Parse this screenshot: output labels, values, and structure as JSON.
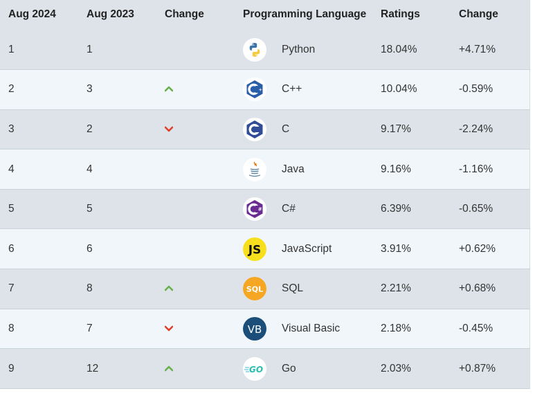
{
  "headers": {
    "current": "Aug 2024",
    "previous": "Aug 2023",
    "change": "Change",
    "language": "Programming Language",
    "ratings": "Ratings",
    "rating_change": "Change"
  },
  "rows": [
    {
      "current": "1",
      "previous": "1",
      "trend": "none",
      "logo": "python-logo",
      "language": "Python",
      "rating": "18.04%",
      "change": "+4.71%"
    },
    {
      "current": "2",
      "previous": "3",
      "trend": "up",
      "logo": "cpp-logo",
      "language": "C++",
      "rating": "10.04%",
      "change": "-0.59%"
    },
    {
      "current": "3",
      "previous": "2",
      "trend": "down",
      "logo": "c-logo",
      "language": "C",
      "rating": "9.17%",
      "change": "-2.24%"
    },
    {
      "current": "4",
      "previous": "4",
      "trend": "none",
      "logo": "java-logo",
      "language": "Java",
      "rating": "9.16%",
      "change": "-1.16%"
    },
    {
      "current": "5",
      "previous": "5",
      "trend": "none",
      "logo": "csharp-logo",
      "language": "C#",
      "rating": "6.39%",
      "change": "-0.65%"
    },
    {
      "current": "6",
      "previous": "6",
      "trend": "none",
      "logo": "javascript-logo",
      "language": "JavaScript",
      "rating": "3.91%",
      "change": "+0.62%"
    },
    {
      "current": "7",
      "previous": "8",
      "trend": "up",
      "logo": "sql-logo",
      "language": "SQL",
      "rating": "2.21%",
      "change": "+0.68%"
    },
    {
      "current": "8",
      "previous": "7",
      "trend": "down",
      "logo": "visual-basic-logo",
      "language": "Visual Basic",
      "rating": "2.18%",
      "change": "-0.45%"
    },
    {
      "current": "9",
      "previous": "12",
      "trend": "up",
      "logo": "go-logo",
      "language": "Go",
      "rating": "2.03%",
      "change": "+0.87%"
    }
  ],
  "logo_text": {
    "js": "JS",
    "sql": "SQL",
    "vb": "VB",
    "go": "GO"
  },
  "colors": {
    "up_arrow": "#6ab04c",
    "down_arrow": "#e0402a",
    "header_bg": "#dde3e8",
    "odd_row_bg": "#dde3e8",
    "even_row_bg": "#f1f6fa"
  }
}
